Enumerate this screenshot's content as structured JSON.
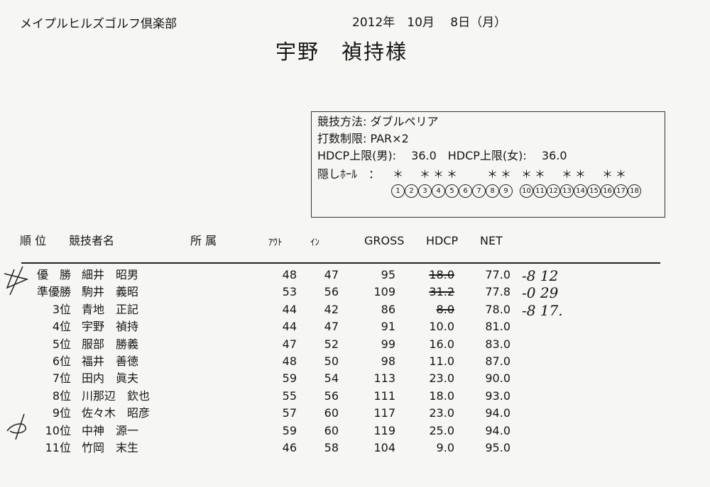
{
  "header": {
    "club": "メイプルヒルズゴルフ倶楽部",
    "date": "2012年　10月　 8日（月）",
    "recipient": "宇野　禎持様"
  },
  "info": {
    "method": "競技方法: ダブルペリア",
    "stroke_limit": "打数制限: PAR×2",
    "hdcp_limit": "HDCP上限(男):　 36.0　HDCP上限(女):　 36.0",
    "hidden_label": "隠しﾎｰﾙ　：",
    "holes": [
      {
        "n": "1",
        "hidden": true
      },
      {
        "n": "2",
        "hidden": false
      },
      {
        "n": "3",
        "hidden": true
      },
      {
        "n": "4",
        "hidden": true
      },
      {
        "n": "5",
        "hidden": true
      },
      {
        "n": "6",
        "hidden": false
      },
      {
        "n": "7",
        "hidden": false
      },
      {
        "n": "8",
        "hidden": true
      },
      {
        "n": "9",
        "hidden": true
      },
      {
        "n": "10",
        "hidden": true
      },
      {
        "n": "11",
        "hidden": true
      },
      {
        "n": "12",
        "hidden": false
      },
      {
        "n": "13",
        "hidden": true
      },
      {
        "n": "14",
        "hidden": true
      },
      {
        "n": "15",
        "hidden": false
      },
      {
        "n": "16",
        "hidden": true
      },
      {
        "n": "17",
        "hidden": true
      },
      {
        "n": "18",
        "hidden": false
      }
    ]
  },
  "table": {
    "headers": {
      "rank": "順 位",
      "name": "競技者名",
      "affiliation": "所 属",
      "out": "ｱｳﾄ",
      "in": "ｲﾝ",
      "gross": "GROSS",
      "hdcp": "HDCP",
      "net": "NET"
    },
    "rows": [
      {
        "rank": "優　勝",
        "name": "細井　昭男",
        "out": "48",
        "in": "47",
        "gross": "95",
        "hdcp": "18.0",
        "net": "77.0",
        "struck": true,
        "note": "-8  12"
      },
      {
        "rank": "準優勝",
        "name": "駒井　義昭",
        "out": "53",
        "in": "56",
        "gross": "109",
        "hdcp": "31.2",
        "net": "77.8",
        "struck": true,
        "note": "-0  29"
      },
      {
        "rank": "3位",
        "name": "青地　正記",
        "out": "44",
        "in": "42",
        "gross": "86",
        "hdcp": "8.0",
        "net": "78.0",
        "struck": true,
        "note": "-8  17."
      },
      {
        "rank": "4位",
        "name": "宇野　禎持",
        "out": "44",
        "in": "47",
        "gross": "91",
        "hdcp": "10.0",
        "net": "81.0"
      },
      {
        "rank": "5位",
        "name": "服部　勝義",
        "out": "47",
        "in": "52",
        "gross": "99",
        "hdcp": "16.0",
        "net": "83.0"
      },
      {
        "rank": "6位",
        "name": "福井　善徳",
        "out": "48",
        "in": "50",
        "gross": "98",
        "hdcp": "11.0",
        "net": "87.0"
      },
      {
        "rank": "7位",
        "name": "田内　眞夫",
        "out": "59",
        "in": "54",
        "gross": "113",
        "hdcp": "23.0",
        "net": "90.0"
      },
      {
        "rank": "8位",
        "name": "川那辺　欽也",
        "out": "55",
        "in": "56",
        "gross": "111",
        "hdcp": "18.0",
        "net": "93.0"
      },
      {
        "rank": "9位",
        "name": "佐々木　昭彦",
        "out": "57",
        "in": "60",
        "gross": "117",
        "hdcp": "23.0",
        "net": "94.0"
      },
      {
        "rank": "10位",
        "name": "中神　源一",
        "out": "59",
        "in": "60",
        "gross": "119",
        "hdcp": "25.0",
        "net": "94.0"
      },
      {
        "rank": "11位",
        "name": "竹岡　末生",
        "out": "46",
        "in": "58",
        "gross": "104",
        "hdcp": "9.0",
        "net": "95.0"
      }
    ]
  }
}
